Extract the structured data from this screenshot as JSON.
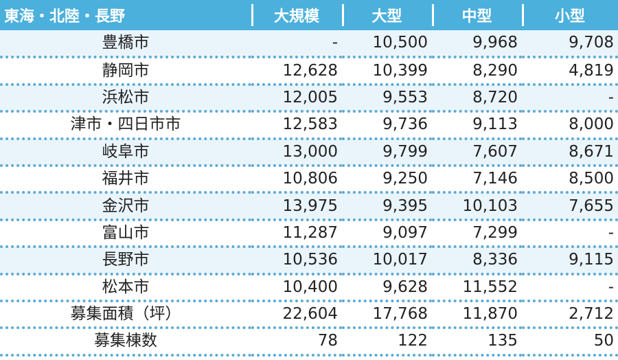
{
  "header": {
    "region": "東海・北陸・長野",
    "columns": [
      "大規模",
      "大型",
      "中型",
      "小型"
    ]
  },
  "rows": [
    {
      "name": "豊橋市",
      "values": [
        "-",
        "10,500",
        "9,968",
        "9,708"
      ]
    },
    {
      "name": "静岡市",
      "values": [
        "12,628",
        "10,399",
        "8,290",
        "4,819"
      ]
    },
    {
      "name": "浜松市",
      "values": [
        "12,005",
        "9,553",
        "8,720",
        "-"
      ]
    },
    {
      "name": "津市・四日市市",
      "values": [
        "12,583",
        "9,736",
        "9,113",
        "8,000"
      ]
    },
    {
      "name": "岐阜市",
      "values": [
        "13,000",
        "9,799",
        "7,607",
        "8,671"
      ]
    },
    {
      "name": "福井市",
      "values": [
        "10,806",
        "9,250",
        "7,146",
        "8,500"
      ]
    },
    {
      "name": "金沢市",
      "values": [
        "13,975",
        "9,395",
        "10,103",
        "7,655"
      ]
    },
    {
      "name": "富山市",
      "values": [
        "11,287",
        "9,097",
        "7,299",
        "-"
      ]
    },
    {
      "name": "長野市",
      "values": [
        "10,536",
        "10,017",
        "8,336",
        "9,115"
      ]
    },
    {
      "name": "松本市",
      "values": [
        "10,400",
        "9,628",
        "11,552",
        "-"
      ]
    },
    {
      "name": "募集面積（坪）",
      "values": [
        "22,604",
        "17,768",
        "11,870",
        "2,712"
      ]
    },
    {
      "name": "募集棟数",
      "values": [
        "78",
        "122",
        "135",
        "50"
      ]
    }
  ],
  "colors": {
    "header_bg": "#4bb0dc",
    "row_tint": "#eaf4fb",
    "divider": "#5aa9d6"
  }
}
